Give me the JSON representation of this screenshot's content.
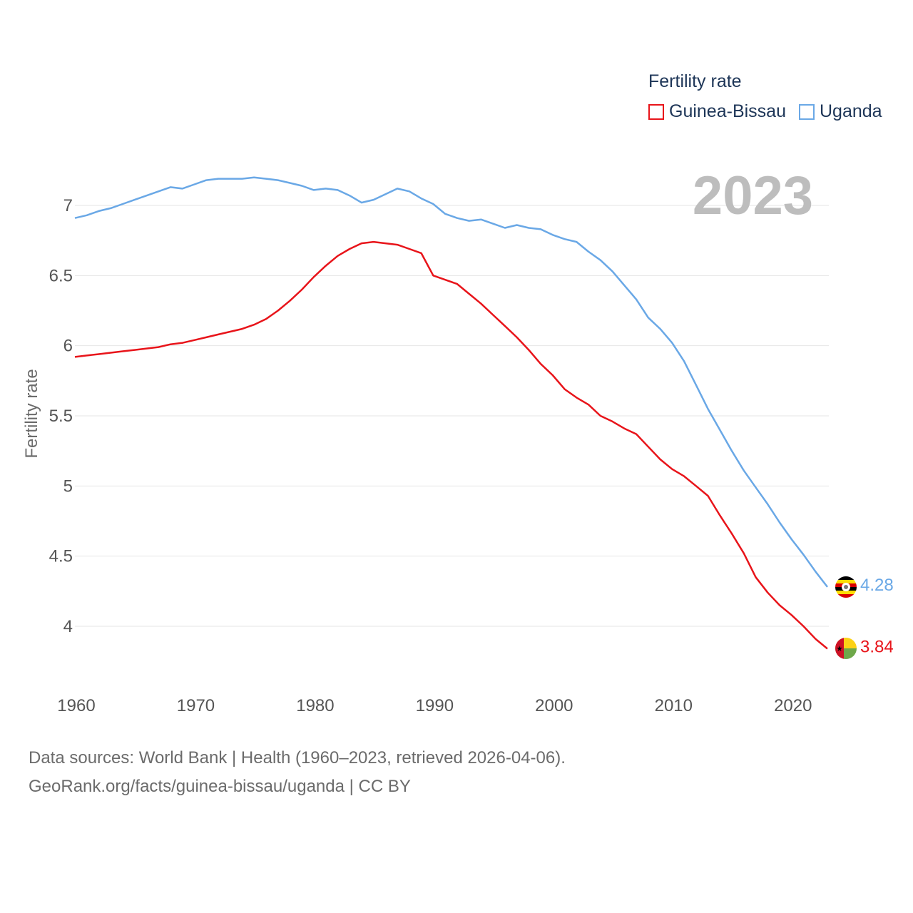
{
  "legend": {
    "title": "Fertility rate",
    "items": [
      {
        "label": "Guinea-Bissau",
        "color": "#e8141a"
      },
      {
        "label": "Uganda",
        "color": "#6aa8e6"
      }
    ]
  },
  "year_label": "2023",
  "footer": {
    "line1": "Data sources: World Bank | Health (1960–2023, retrieved 2026-04-06).",
    "line2": "GeoRank.org/facts/guinea-bissau/uganda | CC BY"
  },
  "chart_data": {
    "type": "line",
    "title": "Fertility rate",
    "xlabel": "",
    "ylabel": "Fertility rate",
    "xlim": [
      1960,
      2023
    ],
    "ylim": [
      3.6,
      7.3
    ],
    "x_ticks": [
      "1960",
      "1970",
      "1980",
      "1990",
      "2000",
      "2010",
      "2020"
    ],
    "y_ticks": [
      "4",
      "4.5",
      "5",
      "5.5",
      "6",
      "6.5",
      "7"
    ],
    "grid": true,
    "legend_position": "top-right",
    "x": [
      1960,
      1961,
      1962,
      1963,
      1964,
      1965,
      1966,
      1967,
      1968,
      1969,
      1970,
      1971,
      1972,
      1973,
      1974,
      1975,
      1976,
      1977,
      1978,
      1979,
      1980,
      1981,
      1982,
      1983,
      1984,
      1985,
      1986,
      1987,
      1988,
      1989,
      1990,
      1991,
      1992,
      1993,
      1994,
      1995,
      1996,
      1997,
      1998,
      1999,
      2000,
      2001,
      2002,
      2003,
      2004,
      2005,
      2006,
      2007,
      2008,
      2009,
      2010,
      2011,
      2012,
      2013,
      2014,
      2015,
      2016,
      2017,
      2018,
      2019,
      2020,
      2021,
      2022,
      2023
    ],
    "series": [
      {
        "name": "Guinea-Bissau",
        "color": "#e8141a",
        "end_label": "3.84",
        "values": [
          5.92,
          5.93,
          5.94,
          5.95,
          5.96,
          5.97,
          5.98,
          5.99,
          6.01,
          6.02,
          6.04,
          6.06,
          6.08,
          6.1,
          6.12,
          6.15,
          6.19,
          6.25,
          6.32,
          6.4,
          6.49,
          6.57,
          6.64,
          6.69,
          6.73,
          6.74,
          6.73,
          6.72,
          6.69,
          6.66,
          6.5,
          6.47,
          6.44,
          6.37,
          6.3,
          6.22,
          6.14,
          6.06,
          5.97,
          5.87,
          5.79,
          5.69,
          5.63,
          5.58,
          5.5,
          5.46,
          5.41,
          5.37,
          5.28,
          5.19,
          5.12,
          5.07,
          5.0,
          4.93,
          4.79,
          4.66,
          4.52,
          4.35,
          4.24,
          4.15,
          4.08,
          4.0,
          3.91,
          3.84
        ]
      },
      {
        "name": "Uganda",
        "color": "#6aa8e6",
        "end_label": "4.28",
        "values": [
          6.91,
          6.93,
          6.96,
          6.98,
          7.01,
          7.04,
          7.07,
          7.1,
          7.13,
          7.12,
          7.15,
          7.18,
          7.19,
          7.19,
          7.19,
          7.2,
          7.19,
          7.18,
          7.16,
          7.14,
          7.11,
          7.12,
          7.11,
          7.07,
          7.02,
          7.04,
          7.08,
          7.12,
          7.1,
          7.05,
          7.01,
          6.94,
          6.91,
          6.89,
          6.9,
          6.87,
          6.84,
          6.86,
          6.84,
          6.83,
          6.79,
          6.76,
          6.74,
          6.67,
          6.61,
          6.53,
          6.43,
          6.33,
          6.2,
          6.12,
          6.02,
          5.89,
          5.72,
          5.55,
          5.4,
          5.25,
          5.11,
          4.99,
          4.87,
          4.74,
          4.62,
          4.51,
          4.39,
          4.28
        ]
      }
    ]
  }
}
